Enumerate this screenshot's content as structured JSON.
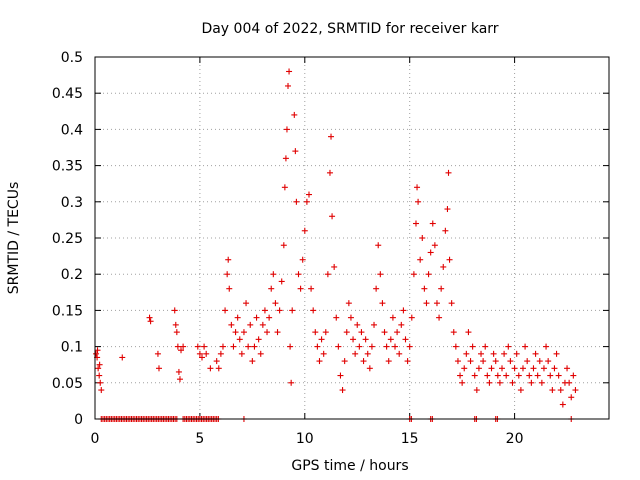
{
  "chart_data": {
    "type": "scatter",
    "title": "Day 004 of 2022, SRMTID for receiver karr",
    "xlabel": "GPS time / hours",
    "ylabel": "SRMTID / TECUs",
    "xlim": [
      0,
      24.5
    ],
    "ylim": [
      0,
      0.5
    ],
    "xticks": [
      0,
      5,
      10,
      15,
      20
    ],
    "yticks": [
      0,
      0.05,
      0.1,
      0.15,
      0.2,
      0.25,
      0.3,
      0.35,
      0.4,
      0.45,
      0.5
    ],
    "ytick_labels": [
      "0",
      "0.05",
      "0.1",
      "0.15",
      "0.2",
      "0.25",
      "0.3",
      "0.35",
      "0.4",
      "0.45",
      "0.5"
    ],
    "grid": true,
    "marker": "+",
    "color": "#e00000",
    "series": [
      {
        "name": "SRMTID",
        "points": [
          [
            0.05,
            0.09
          ],
          [
            0.1,
            0.085
          ],
          [
            0.15,
            0.07
          ],
          [
            0.2,
            0.06
          ],
          [
            0.25,
            0.05
          ],
          [
            0.3,
            0.04
          ],
          [
            0.12,
            0.095
          ],
          [
            0.22,
            0.075
          ],
          [
            1.3,
            0.085
          ],
          [
            2.6,
            0.14
          ],
          [
            2.65,
            0.135
          ],
          [
            3.0,
            0.09
          ],
          [
            3.05,
            0.07
          ],
          [
            3.8,
            0.15
          ],
          [
            3.85,
            0.13
          ],
          [
            3.9,
            0.12
          ],
          [
            3.95,
            0.1
          ],
          [
            4.0,
            0.065
          ],
          [
            4.05,
            0.055
          ],
          [
            4.1,
            0.095
          ],
          [
            4.2,
            0.1
          ],
          [
            4.9,
            0.1
          ],
          [
            5.0,
            0.09
          ],
          [
            5.1,
            0.085
          ],
          [
            5.2,
            0.1
          ],
          [
            5.3,
            0.09
          ],
          [
            5.5,
            0.07
          ],
          [
            5.8,
            0.08
          ],
          [
            5.9,
            0.07
          ],
          [
            6.0,
            0.09
          ],
          [
            6.1,
            0.1
          ],
          [
            6.2,
            0.15
          ],
          [
            6.3,
            0.2
          ],
          [
            6.35,
            0.22
          ],
          [
            6.4,
            0.18
          ],
          [
            6.5,
            0.13
          ],
          [
            6.6,
            0.1
          ],
          [
            6.7,
            0.12
          ],
          [
            6.8,
            0.14
          ],
          [
            6.9,
            0.11
          ],
          [
            7.0,
            0.09
          ],
          [
            7.1,
            0.12
          ],
          [
            7.2,
            0.16
          ],
          [
            7.3,
            0.1
          ],
          [
            7.4,
            0.13
          ],
          [
            7.5,
            0.08
          ],
          [
            7.6,
            0.1
          ],
          [
            7.7,
            0.14
          ],
          [
            7.8,
            0.11
          ],
          [
            7.9,
            0.09
          ],
          [
            8.0,
            0.13
          ],
          [
            8.1,
            0.15
          ],
          [
            8.2,
            0.12
          ],
          [
            8.3,
            0.14
          ],
          [
            8.4,
            0.18
          ],
          [
            8.5,
            0.2
          ],
          [
            8.6,
            0.16
          ],
          [
            8.7,
            0.12
          ],
          [
            8.8,
            0.15
          ],
          [
            8.9,
            0.19
          ],
          [
            9.0,
            0.24
          ],
          [
            9.05,
            0.32
          ],
          [
            9.1,
            0.36
          ],
          [
            9.15,
            0.4
          ],
          [
            9.2,
            0.46
          ],
          [
            9.25,
            0.48
          ],
          [
            9.3,
            0.1
          ],
          [
            9.35,
            0.05
          ],
          [
            9.4,
            0.15
          ],
          [
            9.5,
            0.42
          ],
          [
            9.55,
            0.37
          ],
          [
            9.6,
            0.3
          ],
          [
            9.7,
            0.2
          ],
          [
            9.8,
            0.18
          ],
          [
            9.9,
            0.22
          ],
          [
            10.0,
            0.26
          ],
          [
            10.1,
            0.3
          ],
          [
            10.2,
            0.31
          ],
          [
            10.3,
            0.18
          ],
          [
            10.4,
            0.15
          ],
          [
            10.5,
            0.12
          ],
          [
            10.6,
            0.1
          ],
          [
            10.7,
            0.08
          ],
          [
            10.8,
            0.11
          ],
          [
            10.9,
            0.09
          ],
          [
            11.0,
            0.12
          ],
          [
            11.1,
            0.2
          ],
          [
            11.2,
            0.34
          ],
          [
            11.25,
            0.39
          ],
          [
            11.3,
            0.28
          ],
          [
            11.4,
            0.21
          ],
          [
            11.5,
            0.14
          ],
          [
            11.6,
            0.1
          ],
          [
            11.7,
            0.06
          ],
          [
            11.8,
            0.04
          ],
          [
            11.9,
            0.08
          ],
          [
            12.0,
            0.12
          ],
          [
            12.1,
            0.16
          ],
          [
            12.2,
            0.14
          ],
          [
            12.3,
            0.11
          ],
          [
            12.4,
            0.09
          ],
          [
            12.5,
            0.13
          ],
          [
            12.6,
            0.1
          ],
          [
            12.7,
            0.12
          ],
          [
            12.8,
            0.08
          ],
          [
            12.9,
            0.11
          ],
          [
            13.0,
            0.09
          ],
          [
            13.1,
            0.07
          ],
          [
            13.2,
            0.1
          ],
          [
            13.3,
            0.13
          ],
          [
            13.4,
            0.18
          ],
          [
            13.5,
            0.24
          ],
          [
            13.6,
            0.2
          ],
          [
            13.7,
            0.16
          ],
          [
            13.8,
            0.12
          ],
          [
            13.9,
            0.1
          ],
          [
            14.0,
            0.08
          ],
          [
            14.1,
            0.11
          ],
          [
            14.2,
            0.14
          ],
          [
            14.3,
            0.1
          ],
          [
            14.4,
            0.12
          ],
          [
            14.5,
            0.09
          ],
          [
            14.6,
            0.13
          ],
          [
            14.7,
            0.15
          ],
          [
            14.8,
            0.11
          ],
          [
            14.9,
            0.08
          ],
          [
            15.0,
            0.1
          ],
          [
            15.1,
            0.14
          ],
          [
            15.2,
            0.2
          ],
          [
            15.3,
            0.27
          ],
          [
            15.35,
            0.32
          ],
          [
            15.4,
            0.3
          ],
          [
            15.5,
            0.22
          ],
          [
            15.6,
            0.25
          ],
          [
            15.7,
            0.18
          ],
          [
            15.8,
            0.16
          ],
          [
            15.9,
            0.2
          ],
          [
            16.0,
            0.23
          ],
          [
            16.1,
            0.27
          ],
          [
            16.2,
            0.24
          ],
          [
            16.3,
            0.16
          ],
          [
            16.4,
            0.14
          ],
          [
            16.5,
            0.18
          ],
          [
            16.6,
            0.21
          ],
          [
            16.7,
            0.26
          ],
          [
            16.8,
            0.29
          ],
          [
            16.85,
            0.34
          ],
          [
            16.9,
            0.22
          ],
          [
            17.0,
            0.16
          ],
          [
            17.1,
            0.12
          ],
          [
            17.2,
            0.1
          ],
          [
            17.3,
            0.08
          ],
          [
            17.4,
            0.06
          ],
          [
            17.5,
            0.05
          ],
          [
            17.6,
            0.07
          ],
          [
            17.7,
            0.09
          ],
          [
            17.8,
            0.12
          ],
          [
            17.9,
            0.08
          ],
          [
            18.0,
            0.1
          ],
          [
            18.1,
            0.06
          ],
          [
            18.2,
            0.04
          ],
          [
            18.3,
            0.07
          ],
          [
            18.4,
            0.09
          ],
          [
            18.5,
            0.08
          ],
          [
            18.6,
            0.1
          ],
          [
            18.7,
            0.06
          ],
          [
            18.8,
            0.05
          ],
          [
            18.9,
            0.07
          ],
          [
            19.0,
            0.09
          ],
          [
            19.1,
            0.08
          ],
          [
            19.2,
            0.06
          ],
          [
            19.3,
            0.05
          ],
          [
            19.4,
            0.07
          ],
          [
            19.5,
            0.09
          ],
          [
            19.6,
            0.06
          ],
          [
            19.7,
            0.1
          ],
          [
            19.8,
            0.08
          ],
          [
            19.9,
            0.05
          ],
          [
            20.0,
            0.07
          ],
          [
            20.1,
            0.09
          ],
          [
            20.2,
            0.06
          ],
          [
            20.3,
            0.04
          ],
          [
            20.4,
            0.07
          ],
          [
            20.5,
            0.1
          ],
          [
            20.6,
            0.08
          ],
          [
            20.7,
            0.06
          ],
          [
            20.8,
            0.05
          ],
          [
            20.9,
            0.07
          ],
          [
            21.0,
            0.09
          ],
          [
            21.1,
            0.06
          ],
          [
            21.2,
            0.08
          ],
          [
            21.3,
            0.05
          ],
          [
            21.4,
            0.07
          ],
          [
            21.5,
            0.1
          ],
          [
            21.6,
            0.08
          ],
          [
            21.7,
            0.06
          ],
          [
            21.8,
            0.04
          ],
          [
            21.9,
            0.07
          ],
          [
            22.0,
            0.09
          ],
          [
            22.1,
            0.06
          ],
          [
            22.2,
            0.04
          ],
          [
            22.3,
            0.02
          ],
          [
            22.4,
            0.05
          ],
          [
            22.5,
            0.07
          ],
          [
            22.6,
            0.05
          ],
          [
            22.7,
            0.03
          ],
          [
            22.8,
            0.06
          ],
          [
            22.9,
            0.04
          ]
        ],
        "zero_runs": [
          [
            0.3,
            3.9
          ],
          [
            4.2,
            5.9
          ],
          [
            7.1,
            7.15
          ],
          [
            15.0,
            15.1
          ],
          [
            16.0,
            16.1
          ],
          [
            18.1,
            18.2
          ],
          [
            19.1,
            19.2
          ],
          [
            22.7,
            22.75
          ]
        ]
      }
    ]
  }
}
